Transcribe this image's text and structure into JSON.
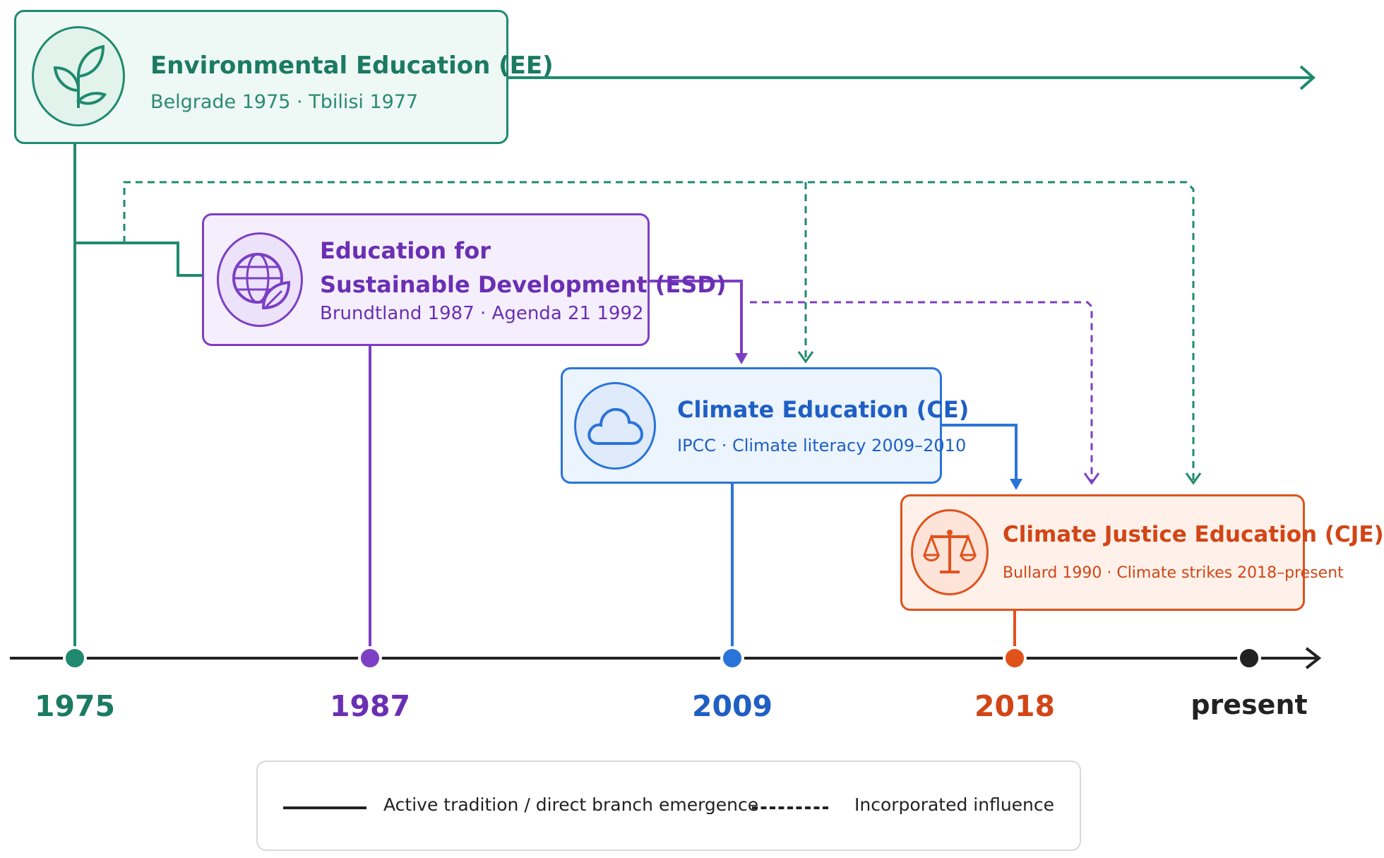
{
  "colors": {
    "ee": "#1f8a6e",
    "esd": "#7c3fc4",
    "ce": "#2a74d9",
    "cje": "#e0521c",
    "axis": "#222222"
  },
  "traditions": {
    "ee": {
      "title": "Environmental Education (EE)",
      "subtitle": "Belgrade 1975 · Tbilisi 1977",
      "icon": "leaf-sprout-icon"
    },
    "esd": {
      "title_line1": "Education for",
      "title_line2": "Sustainable Development (ESD)",
      "subtitle": "Brundtland 1987 · Agenda 21 1992",
      "icon": "globe-leaf-icon"
    },
    "ce": {
      "title": "Climate Education (CE)",
      "subtitle": "IPCC · Climate literacy 2009–2010",
      "icon": "cloud-icon"
    },
    "cje": {
      "title": "Climate Justice Education (CJE)",
      "subtitle": "Bullard 1990 · Climate strikes 2018–present",
      "icon": "scales-of-justice-icon"
    }
  },
  "timeline": {
    "years": [
      "1975",
      "1987",
      "2009",
      "2018",
      "present"
    ]
  },
  "legend": {
    "solid": "Active tradition / direct branch emergence",
    "dashed": "Incorporated influence"
  }
}
